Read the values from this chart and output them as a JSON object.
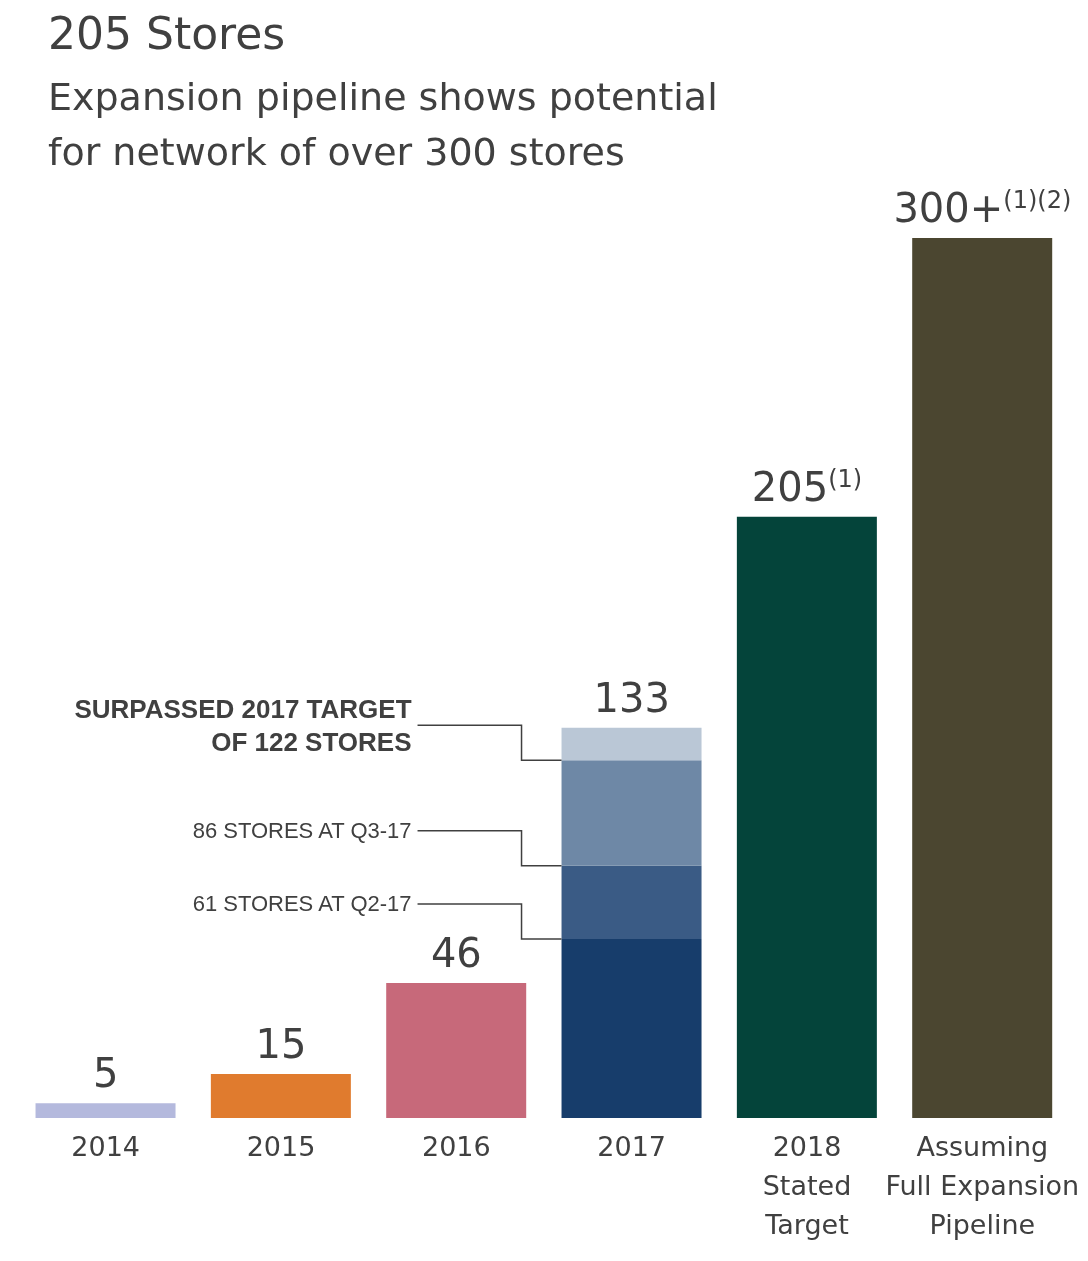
{
  "chart_data": {
    "type": "bar",
    "title": "205 Stores",
    "subtitle": "Expansion pipeline shows potential for network of over 300 stores",
    "categories": [
      "2014",
      "2015",
      "2016",
      "2017",
      "2018\nStated\nTarget",
      "Assuming\nFull Expansion\nPipeline"
    ],
    "stacked": true,
    "series": [
      {
        "values": [
          5,
          15,
          46,
          61,
          205,
          300
        ],
        "value_labels": [
          "5",
          "15",
          "46",
          null,
          "205$^{(1)}$",
          "300+$^{(1)(2)}$"
        ],
        "colors": [
          "#b4b9dd",
          "#e07b2e",
          "#c7697a",
          "#173d6b",
          "#04443a",
          "#4b4630"
        ]
      },
      {
        "values": [
          null,
          null,
          null,
          25,
          null,
          null
        ],
        "color": "#3a5b85"
      },
      {
        "values": [
          null,
          null,
          null,
          36,
          null,
          null
        ],
        "color": "#6e88a6"
      },
      {
        "values": [
          null,
          null,
          null,
          11,
          null,
          null
        ],
        "color": "#bac7d6"
      }
    ],
    "totals": [
      null,
      null,
      null,
      "133",
      null,
      null
    ],
    "annotations": [
      "SURPASSED 2017 TARGET OF 122 STORES",
      "86 STORES AT Q3-17",
      "61 STORES AT Q2-17"
    ],
    "grid": false,
    "legend": false
  }
}
